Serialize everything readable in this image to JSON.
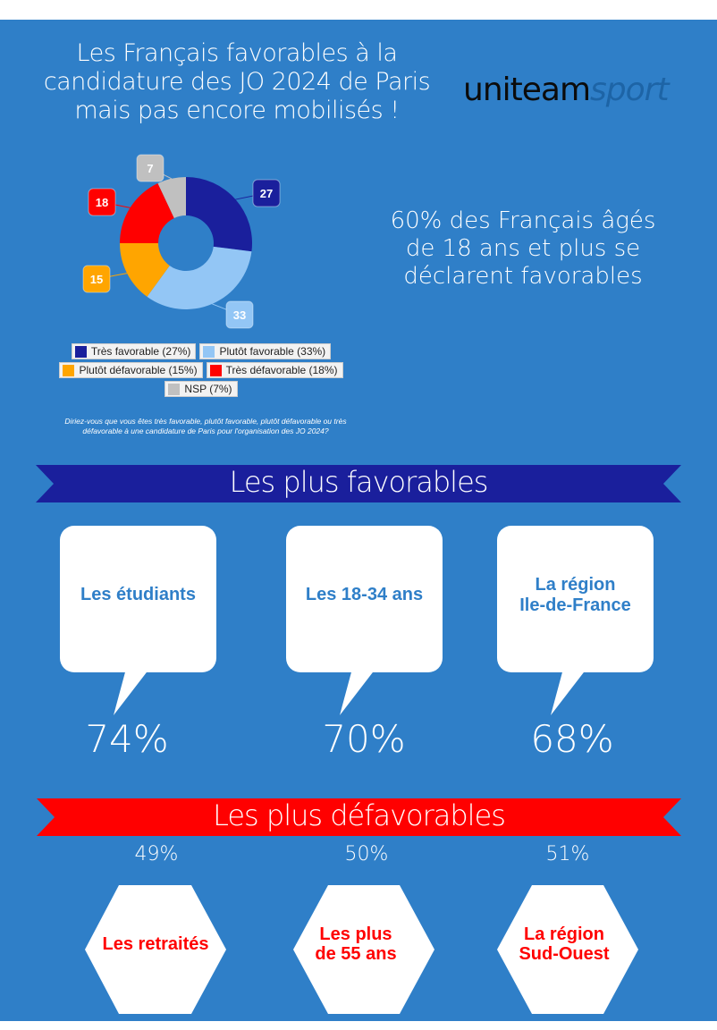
{
  "header": {
    "title_lines": [
      "Les Français favorables à la",
      "candidature des JO 2024 de Paris",
      "mais pas encore mobilisés !"
    ],
    "logo": {
      "part1": "uniteam",
      "part2": "sport"
    }
  },
  "headline_lines": [
    "60% des Français âgés",
    "de 18 ans et plus se",
    "déclarent favorables"
  ],
  "question_lines": [
    "Diriez-vous que vous êtes très favorable, plutôt favorable, plutôt défavorable ou très",
    "défavorable à une candidature de Paris pour l'organisation des JO 2024?"
  ],
  "chart_data": {
    "type": "pie",
    "donut": true,
    "categories": [
      "Très favorable",
      "Plutôt favorable",
      "Plutôt défavorable",
      "Très défavorable",
      "NSP"
    ],
    "values": [
      27,
      33,
      15,
      18,
      7
    ],
    "colors": [
      "#1a1f9c",
      "#93c6f5",
      "#ffa500",
      "#ff0000",
      "#c0c0c0"
    ],
    "data_labels": [
      "27",
      "33",
      "15",
      "18",
      "7"
    ],
    "legend": [
      "Très favorable (27%)",
      "Plutôt favorable (33%)",
      "Plutôt défavorable (15%)",
      "Très défavorable (18%)",
      "NSP (7%)"
    ],
    "legend_placement": "bottom"
  },
  "favorables": {
    "title": "Les plus favorables",
    "color": "#1a1f9c",
    "items": [
      {
        "label": [
          "Les étudiants"
        ],
        "value": "74%"
      },
      {
        "label": [
          "Les 18-34 ans"
        ],
        "value": "70%"
      },
      {
        "label": [
          "La région",
          "Ile-de-France"
        ],
        "value": "68%"
      }
    ]
  },
  "defavorables": {
    "title": "Les plus défavorables",
    "color": "#ff0000",
    "items": [
      {
        "label": [
          "Les retraités"
        ],
        "value": "49%"
      },
      {
        "label": [
          "Les plus",
          "de 55 ans"
        ],
        "value": "50%"
      },
      {
        "label": [
          "La région",
          "Sud-Ouest"
        ],
        "value": "51%"
      }
    ]
  },
  "colors": {
    "background": "#2f7fc8",
    "text_accent": "#2f7fc8"
  }
}
